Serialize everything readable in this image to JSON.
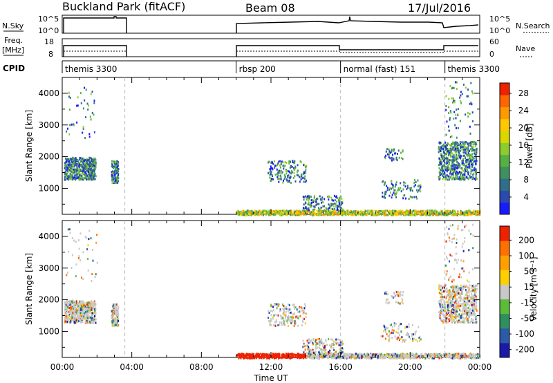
{
  "header": {
    "title": "Buckland Park (fitACF)",
    "beam": "Beam 08",
    "date": "17/Jul/2016"
  },
  "info_panels": {
    "nsky_label": "N.Sky",
    "nsky_ticks": [
      "10^5",
      "10^0"
    ],
    "nsearch_label": "N.Search",
    "nsearch_ticks": [
      "10^5",
      "10^0"
    ],
    "freq_label": "Freq.",
    "freq_unit": "[MHz]",
    "freq_ticks": [
      "18",
      "8"
    ],
    "nave_label": "Nave",
    "nave_ticks": [
      "60",
      "0"
    ],
    "cpid_label": "CPID",
    "cpid_segments": [
      {
        "label": "themis 3300",
        "start_h": 0,
        "end_h": 3.6
      },
      {
        "label": "rbsp 200",
        "start_h": 10,
        "end_h": 16
      },
      {
        "label": "normal (fast) 151",
        "start_h": 16,
        "end_h": 22
      },
      {
        "label": "themis 3300",
        "start_h": 22,
        "end_h": 24
      }
    ]
  },
  "chart_data": [
    {
      "type": "heatmap",
      "panel": "power",
      "ylabel": "Slant Range [km]",
      "colorbar_label": "Power [dB]",
      "colorbar_ticks": [
        "4",
        "8",
        "12",
        "16",
        "20",
        "24",
        "28"
      ],
      "colorbar_colors": [
        "#1a1aff",
        "#2b4ab0",
        "#2f6f8a",
        "#3f8f5f",
        "#57b043",
        "#8dcc2e",
        "#d8d800",
        "#ffc800",
        "#ff9900",
        "#ff6600",
        "#ee2200"
      ],
      "x_range_h": [
        0,
        24
      ],
      "y_ticks": [
        "1000",
        "2000",
        "3000",
        "4000"
      ],
      "ylim_km": [
        180,
        4500
      ],
      "dashed_time_lines_h": [
        3.6,
        16,
        22
      ]
    },
    {
      "type": "heatmap",
      "panel": "velocity",
      "ylabel": "Slant Range [km]",
      "colorbar_label": "Velocity [m s⁻¹]",
      "colorbar_ticks": [
        "200",
        "100",
        "50",
        "15",
        "-15",
        "-50",
        "-100",
        "-200"
      ],
      "colorbar_colors": [
        "#1a1aa8",
        "#2a5aa8",
        "#2f8f5f",
        "#5dbb3a",
        "#c9c9c9",
        "#ffd000",
        "#ffa000",
        "#ff7000",
        "#ee2200"
      ],
      "x_range_h": [
        0,
        24
      ],
      "y_ticks": [
        "1000",
        "2000",
        "3000",
        "4000"
      ],
      "ylim_km": [
        180,
        4500
      ],
      "dashed_time_lines_h": [
        3.6,
        16,
        22
      ]
    }
  ],
  "x_axis": {
    "label": "Time UT",
    "ticks": [
      "00:00",
      "04:00",
      "08:00",
      "12:00",
      "16:00",
      "20:00",
      "00:00"
    ]
  }
}
